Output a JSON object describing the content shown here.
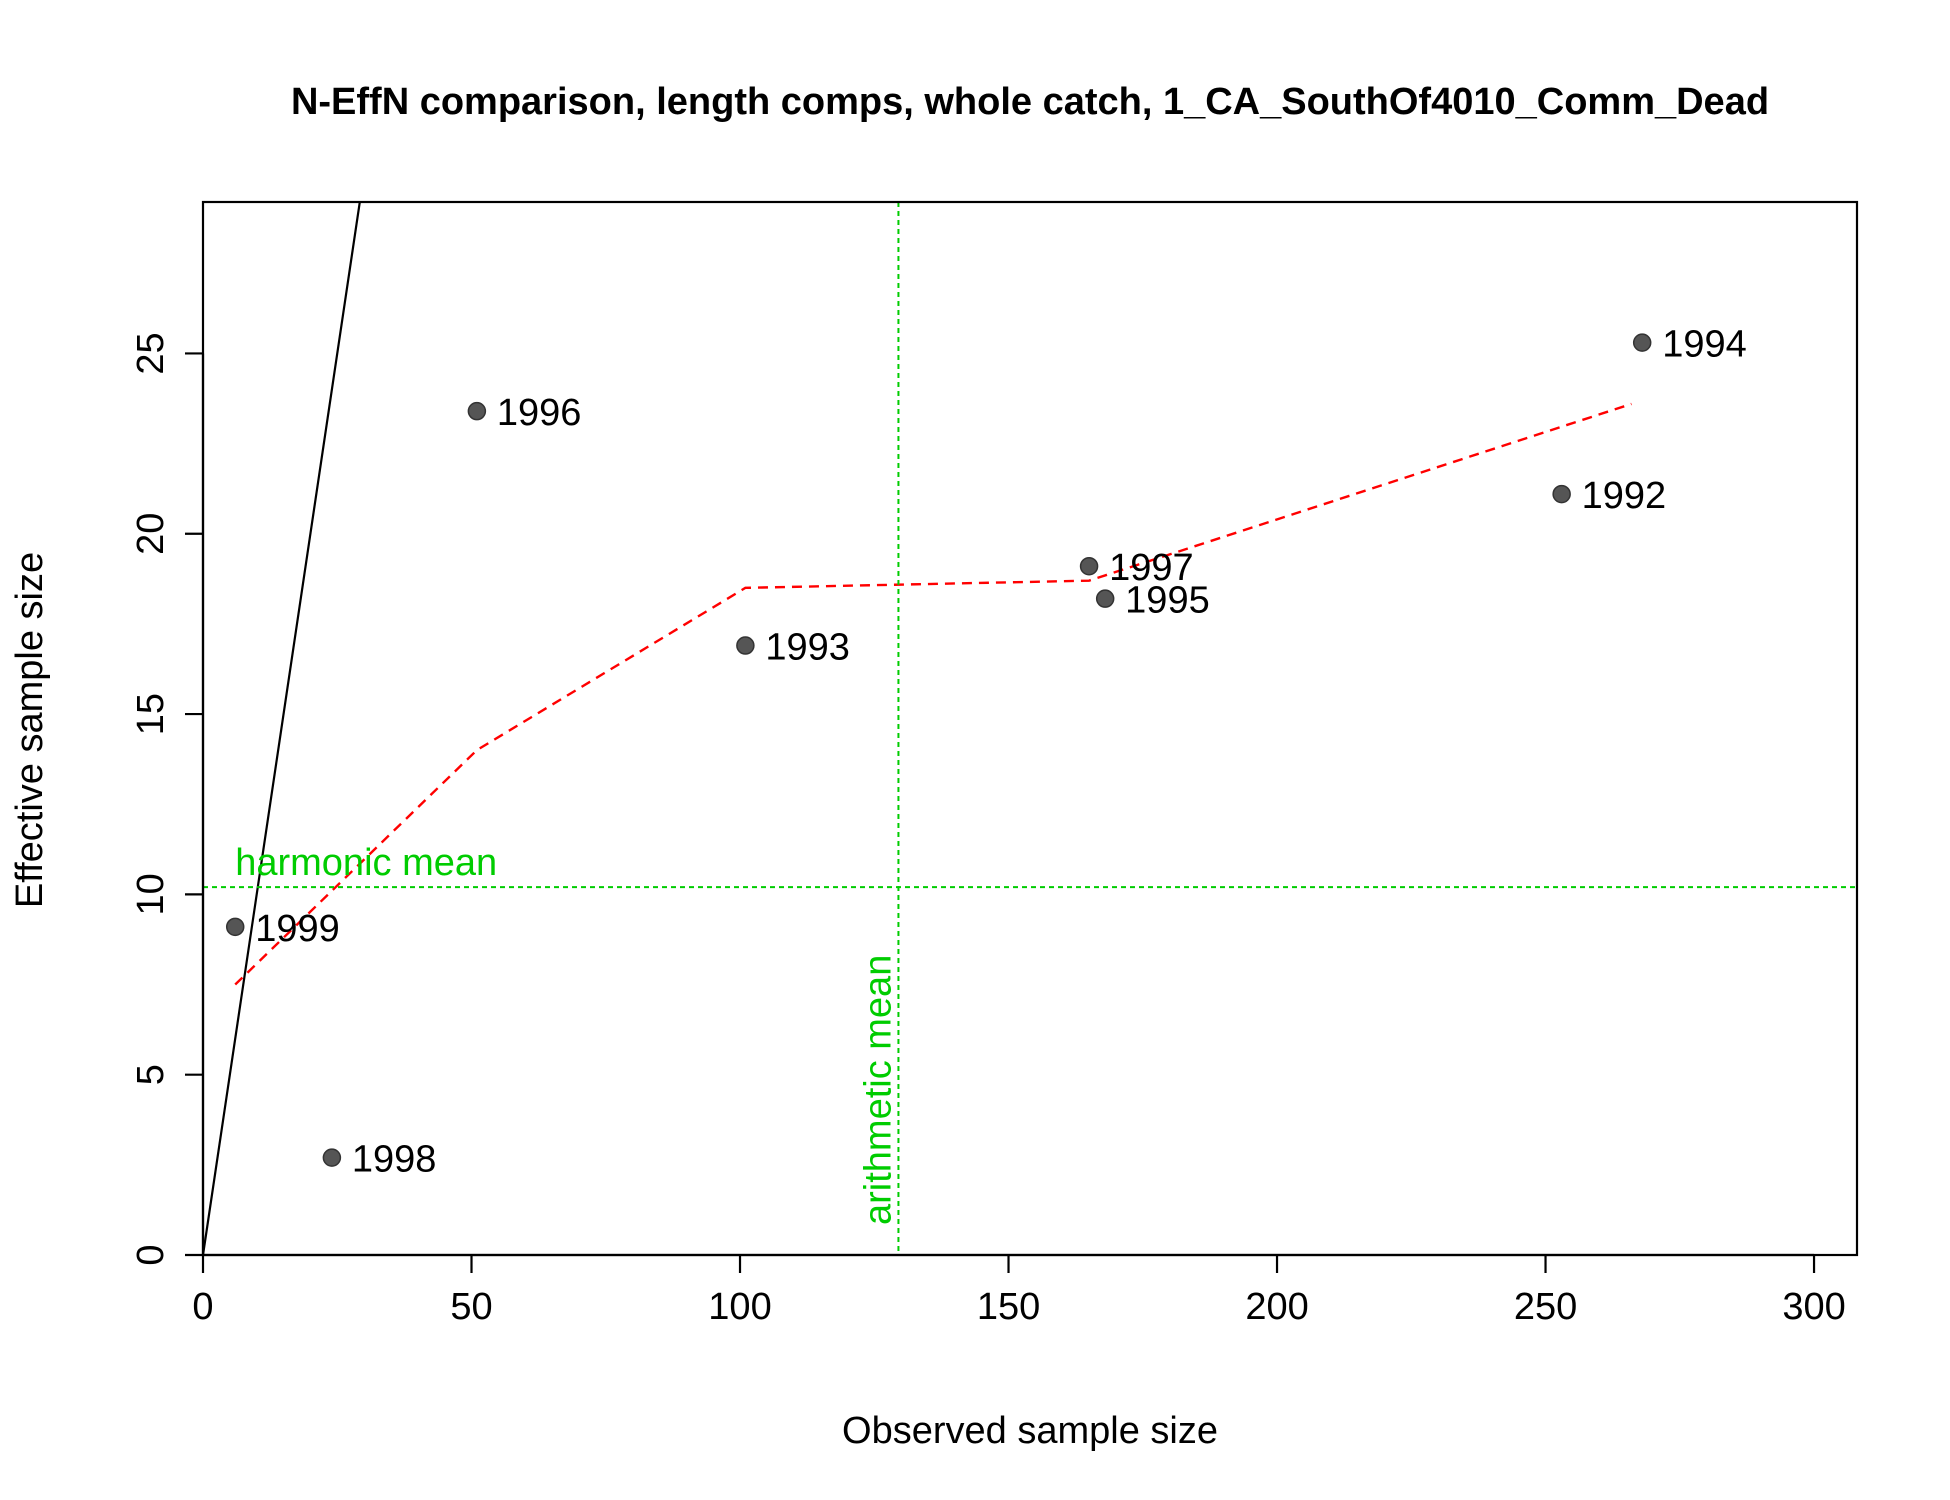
{
  "chart_data": {
    "type": "scatter",
    "title": "N-EffN comparison, length comps, whole catch, 1_CA_SouthOf4010_Comm_Dead",
    "xlabel": "Observed sample size",
    "ylabel": "Effective sample size",
    "xlim": [
      0,
      308
    ],
    "ylim": [
      0,
      29.2
    ],
    "xticks": [
      0,
      50,
      100,
      150,
      200,
      250,
      300
    ],
    "yticks": [
      0,
      5,
      10,
      15,
      20,
      25
    ],
    "grid": false,
    "legend": "none",
    "points": [
      {
        "label": "1992",
        "x": 253,
        "y": 21.1
      },
      {
        "label": "1993",
        "x": 101,
        "y": 16.9
      },
      {
        "label": "1994",
        "x": 268,
        "y": 25.3
      },
      {
        "label": "1995",
        "x": 168,
        "y": 18.2
      },
      {
        "label": "1996",
        "x": 51,
        "y": 23.4
      },
      {
        "label": "1997",
        "x": 165,
        "y": 19.1
      },
      {
        "label": "1998",
        "x": 24,
        "y": 2.7
      },
      {
        "label": "1999",
        "x": 6,
        "y": 9.1
      }
    ],
    "one_to_one_line": {
      "slope": 1
    },
    "smoother": {
      "x": [
        6,
        51,
        101,
        165,
        266
      ],
      "y": [
        7.5,
        14.0,
        18.5,
        18.7,
        23.6
      ]
    },
    "harmonic_mean": {
      "label": "harmonic mean",
      "value": 10.2
    },
    "arithmetic_mean": {
      "label": "arithmetic mean",
      "value": 129.5
    },
    "colors": {
      "points": "#555555",
      "smoother": "#ff0000",
      "means": "#00cc00",
      "one_to_one": "#000000"
    }
  }
}
